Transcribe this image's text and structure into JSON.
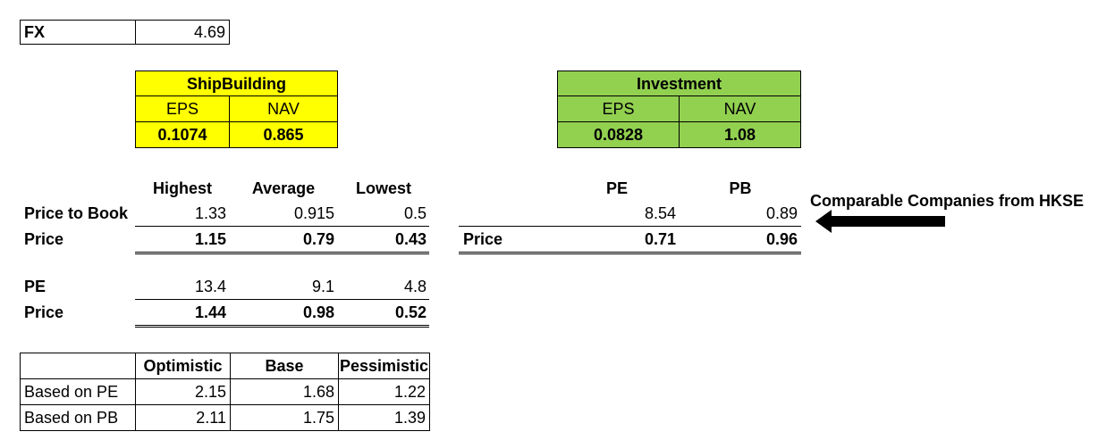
{
  "fx": {
    "label": "FX",
    "value": "4.69"
  },
  "shipbuilding": {
    "title": "ShipBuilding",
    "eps_label": "EPS",
    "nav_label": "NAV",
    "eps": "0.1074",
    "nav": "0.865"
  },
  "investment": {
    "title": "Investment",
    "eps_label": "EPS",
    "nav_label": "NAV",
    "eps": "0.0828",
    "nav": "1.08"
  },
  "multiples": {
    "headers": [
      "Highest",
      "Average",
      "Lowest"
    ],
    "pb_label": "Price to Book",
    "pb_values": [
      "1.33",
      "0.915",
      "0.5"
    ],
    "pb_price_label": "Price",
    "pb_prices": [
      "1.15",
      "0.79",
      "0.43"
    ],
    "pe_label": "PE",
    "pe_values": [
      "13.4",
      "9.1",
      "4.8"
    ],
    "pe_price_label": "Price",
    "pe_prices": [
      "1.44",
      "0.98",
      "0.52"
    ]
  },
  "comparable": {
    "headers": [
      "PE",
      "PB"
    ],
    "values": [
      "8.54",
      "0.89"
    ],
    "price_label": "Price",
    "prices": [
      "0.71",
      "0.96"
    ],
    "note": "Comparable Companies from HKSE"
  },
  "scenarios": {
    "headers": [
      "",
      "Optimistic",
      "Base",
      "Pessimistic"
    ],
    "rows": [
      {
        "label": "Based on PE",
        "values": [
          "2.15",
          "1.68",
          "1.22"
        ]
      },
      {
        "label": "Based on PB",
        "values": [
          "2.11",
          "1.75",
          "1.39"
        ]
      }
    ]
  }
}
